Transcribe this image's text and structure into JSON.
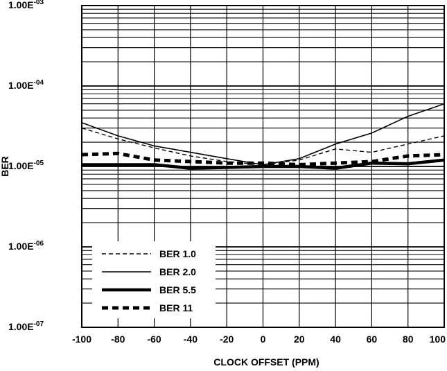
{
  "chart_data": {
    "type": "line",
    "xlabel": "CLOCK OFFSET (PPM)",
    "ylabel": "BER",
    "xlim": [
      -100,
      100
    ],
    "ylim": [
      1e-07,
      0.001
    ],
    "yscale": "log",
    "grid": true,
    "legend_position": "bottom-left",
    "x_ticks": [
      "-100",
      "-80",
      "-60",
      "-40",
      "-20",
      "0",
      "20",
      "40",
      "60",
      "80",
      "100"
    ],
    "y_ticks": [
      {
        "value": 0.001,
        "mantissa": "1.00E",
        "exponent": "-03"
      },
      {
        "value": 0.0001,
        "mantissa": "1.00E",
        "exponent": "-04"
      },
      {
        "value": 1e-05,
        "mantissa": "1.00E",
        "exponent": "-05"
      },
      {
        "value": 1e-06,
        "mantissa": "1.00E",
        "exponent": "-06"
      },
      {
        "value": 1e-07,
        "mantissa": "1.00E",
        "exponent": "-07"
      }
    ],
    "x": [
      -100,
      -80,
      -60,
      -40,
      -20,
      0,
      20,
      40,
      60,
      80,
      100
    ],
    "series": [
      {
        "name": "BER 1.0",
        "style": "thin-dashed",
        "values": [
          3e-05,
          2.2e-05,
          1.7e-05,
          1.35e-05,
          1.15e-05,
          1.05e-05,
          1.2e-05,
          1.65e-05,
          1.5e-05,
          1.9e-05,
          2.4e-05
        ]
      },
      {
        "name": "BER 2.0",
        "style": "thin-solid",
        "values": [
          3.5e-05,
          2.4e-05,
          1.8e-05,
          1.5e-05,
          1.25e-05,
          1.05e-05,
          1.25e-05,
          1.9e-05,
          2.6e-05,
          4.2e-05,
          6e-05
        ]
      },
      {
        "name": "BER 5.5",
        "style": "thick-solid",
        "values": [
          1.05e-05,
          1.05e-05,
          1.05e-05,
          9.5e-06,
          9.7e-06,
          1e-05,
          1e-05,
          9.5e-06,
          1.1e-05,
          1.08e-05,
          1.2e-05
        ]
      },
      {
        "name": "BER 11",
        "style": "thick-dashed",
        "values": [
          1.4e-05,
          1.45e-05,
          1.2e-05,
          1.15e-05,
          1.1e-05,
          1.1e-05,
          1.05e-05,
          1.1e-05,
          1.15e-05,
          1.35e-05,
          1.4e-05
        ]
      }
    ]
  }
}
